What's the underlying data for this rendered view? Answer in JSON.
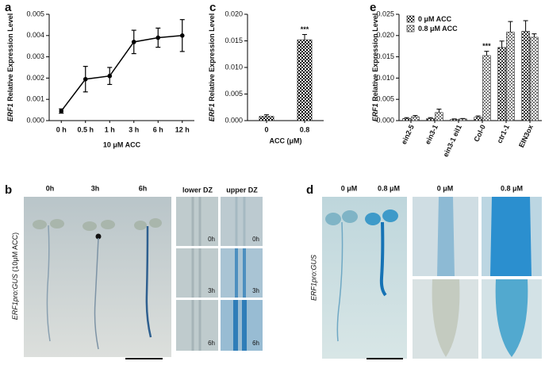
{
  "chart_data": [
    {
      "type": "line",
      "ylabel_gene": "ERF1",
      "ylabel": "Relative Expression Level",
      "xlabel": "10 μM ACC",
      "categories": [
        "0 h",
        "0.5 h",
        "1 h",
        "3 h",
        "6 h",
        "12 h"
      ],
      "values": [
        0.00045,
        0.00195,
        0.0021,
        0.0037,
        0.0039,
        0.004
      ],
      "errors": [
        0.0001,
        0.0006,
        0.0004,
        0.00055,
        0.00045,
        0.00075
      ],
      "color": "#000000",
      "ylim": [
        0,
        0.005
      ],
      "yticks": [
        {
          "value": 0,
          "label": "0.000"
        },
        {
          "value": 0.001,
          "label": "0.001"
        },
        {
          "value": 0.002,
          "label": "0.002"
        },
        {
          "value": 0.003,
          "label": "0.003"
        },
        {
          "value": 0.004,
          "label": "0.004"
        },
        {
          "value": 0.005,
          "label": "0.005"
        }
      ]
    },
    {
      "type": "bar",
      "ylabel_gene": "ERF1",
      "ylabel": "Relative Expression Level",
      "xlabel": "ACC (μM)",
      "categories": [
        "0",
        "0.8"
      ],
      "values": [
        0.0008,
        0.0152
      ],
      "errors": [
        0.0003,
        0.001
      ],
      "color": "#000000",
      "annotations": [
        {
          "text": "***",
          "category": "0.8"
        }
      ],
      "ylim": [
        0,
        0.02
      ],
      "yticks": [
        {
          "value": 0,
          "label": "0.000"
        },
        {
          "value": 0.005,
          "label": "0.005"
        },
        {
          "value": 0.01,
          "label": "0.010"
        },
        {
          "value": 0.015,
          "label": "0.015"
        },
        {
          "value": 0.02,
          "label": "0.020"
        }
      ]
    },
    {
      "type": "bar",
      "ylabel_gene": "ERF1",
      "ylabel": "Relative Expression Level",
      "categories": [
        "ein2-5",
        "ein3-1",
        "ein3-1 eil1",
        "Col-0",
        "ctr1-1",
        "EIN3ox"
      ],
      "series": [
        {
          "name": "0 μM ACC",
          "color": "#333333",
          "values": [
            0.0005,
            0.0005,
            0.0003,
            0.0008,
            0.0172,
            0.021
          ],
          "errors": [
            0.0002,
            0.0002,
            0.0001,
            0.0003,
            0.0015,
            0.0025
          ]
        },
        {
          "name": "0.8 μM ACC",
          "color": "#777777",
          "values": [
            0.0009,
            0.0019,
            0.0004,
            0.0153,
            0.0208,
            0.0196
          ],
          "errors": [
            0.0003,
            0.0008,
            0.0001,
            0.001,
            0.0025,
            0.0008
          ]
        }
      ],
      "annotations": [
        {
          "text": "***",
          "category": "Col-0",
          "series": "0.8 μM ACC"
        }
      ],
      "legend": "upper left",
      "ylim": [
        0,
        0.025
      ],
      "yticks": [
        {
          "value": 0,
          "label": "0.000"
        },
        {
          "value": 0.005,
          "label": "0.005"
        },
        {
          "value": 0.01,
          "label": "0.010"
        },
        {
          "value": 0.015,
          "label": "0.015"
        },
        {
          "value": 0.02,
          "label": "0.020"
        },
        {
          "value": 0.025,
          "label": "0.025"
        }
      ]
    }
  ],
  "panel_letters": {
    "a": "a",
    "c": "c",
    "e": "e",
    "b": "b",
    "d": "d"
  },
  "panel_b": {
    "columns": [
      "0h",
      "3h",
      "6h"
    ],
    "zones": [
      "lower DZ",
      "upper DZ"
    ],
    "ylabel_gene": "ERF1pro:GUS",
    "ylabel_treatment": "(10μM ACC)",
    "insets": [
      [
        "0h",
        "0h"
      ],
      [
        "3h",
        "3h"
      ],
      [
        "6h",
        "6h"
      ]
    ]
  },
  "panel_d": {
    "columns": [
      "0 μM",
      "0.8 μM"
    ],
    "zoom_columns": [
      "0 μM",
      "0.8 μM"
    ],
    "ylabel_gene": "ERF1pro:GUS"
  }
}
